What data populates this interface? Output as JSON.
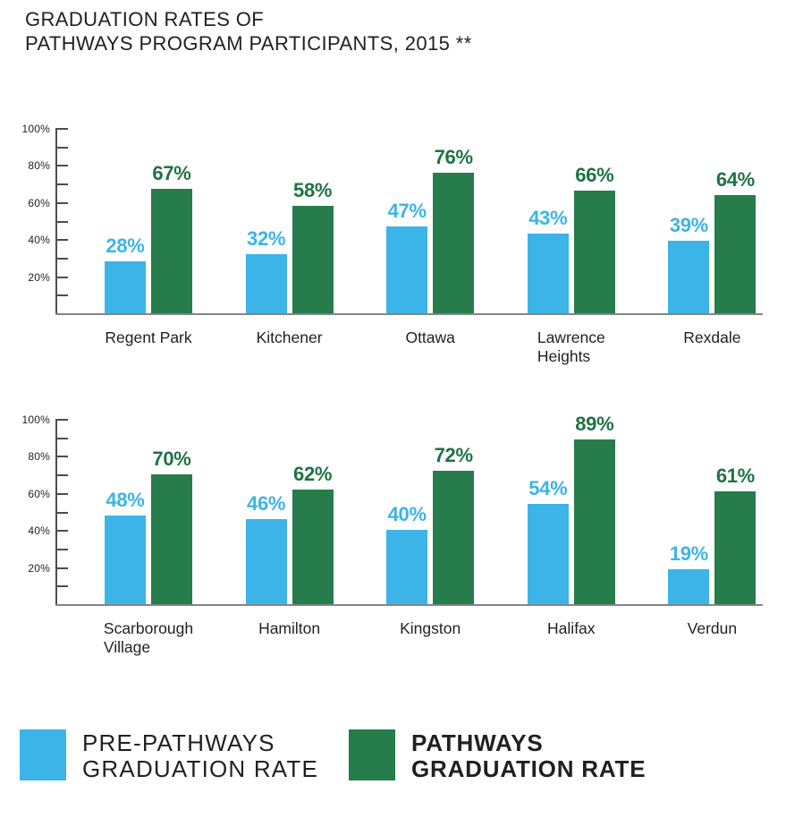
{
  "title": {
    "line1": "GRADUATION RATES OF",
    "line2": "PATHWAYS PROGRAM PARTICIPANTS, 2015 **"
  },
  "colors": {
    "pre_bar": "#3cb4e7",
    "pre_label": "#3cb4e7",
    "post_bar": "#267c4a",
    "post_label": "#1f7246",
    "axis": "#4d4d4f",
    "baseline": "#848588",
    "text": "#231f20"
  },
  "y_axis": {
    "max": 100,
    "minor_tick_step": 10,
    "labeled_ticks": [
      20,
      40,
      60,
      80,
      100
    ],
    "label_suffix": "%"
  },
  "legend": [
    {
      "line1": "PRE-PATHWAYS",
      "line2": "GRADUATION RATE",
      "color": "#3cb4e7",
      "bold": false
    },
    {
      "line1": "PATHWAYS",
      "line2": "GRADUATION RATE",
      "color": "#267c4a",
      "bold": true
    }
  ],
  "chart_data": [
    {
      "type": "bar",
      "categories": [
        "Regent Park",
        "Kitchener",
        "Ottawa",
        "Lawrence\nHeights",
        "Rexdale"
      ],
      "series": [
        {
          "name": "PRE-PATHWAYS GRADUATION RATE",
          "values": [
            28,
            32,
            47,
            43,
            39
          ]
        },
        {
          "name": "PATHWAYS GRADUATION RATE",
          "values": [
            67,
            58,
            76,
            66,
            64
          ]
        }
      ],
      "ylim": [
        0,
        100
      ],
      "value_label_suffix": "%",
      "grid": false,
      "legend_position": "bottom"
    },
    {
      "type": "bar",
      "categories": [
        "Scarborough\nVillage",
        "Hamilton",
        "Kingston",
        "Halifax",
        "Verdun"
      ],
      "series": [
        {
          "name": "PRE-PATHWAYS GRADUATION RATE",
          "values": [
            48,
            46,
            40,
            54,
            19
          ]
        },
        {
          "name": "PATHWAYS GRADUATION RATE",
          "values": [
            70,
            62,
            72,
            89,
            61
          ]
        }
      ],
      "ylim": [
        0,
        100
      ],
      "value_label_suffix": "%",
      "grid": false,
      "legend_position": "bottom"
    }
  ]
}
